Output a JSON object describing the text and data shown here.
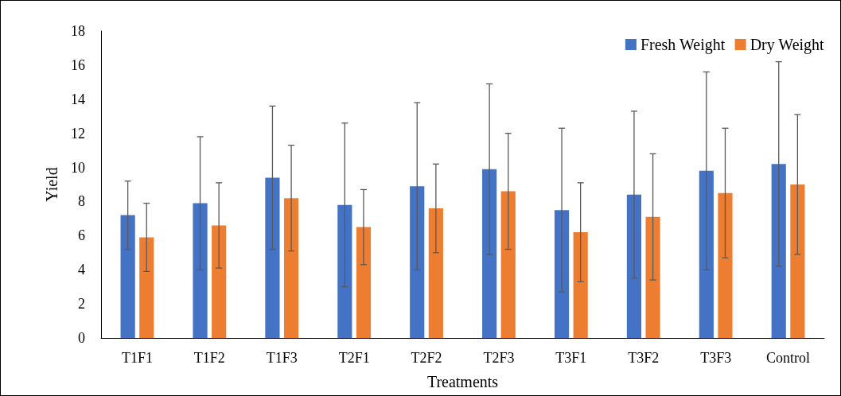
{
  "chart_data": {
    "type": "bar",
    "xlabel": "Treatments",
    "ylabel": "Yield",
    "categories": [
      "T1F1",
      "T1F2",
      "T1F3",
      "T2F1",
      "T2F2",
      "T2F3",
      "T3F1",
      "T3F2",
      "T3F3",
      "Control"
    ],
    "series": [
      {
        "name": "Fresh Weight",
        "color": "#4472c4",
        "values": [
          7.2,
          7.9,
          9.4,
          7.8,
          8.9,
          9.9,
          7.5,
          8.4,
          9.8,
          10.2
        ],
        "errors": [
          2,
          3.9,
          4.2,
          4.8,
          4.9,
          5,
          4.8,
          4.9,
          5.8,
          6
        ]
      },
      {
        "name": "Dry Weight",
        "color": "#ed7d31",
        "values": [
          5.9,
          6.6,
          8.2,
          6.5,
          7.6,
          8.6,
          6.2,
          7.1,
          8.5,
          9
        ],
        "errors": [
          2,
          2.5,
          3.1,
          2.2,
          2.6,
          3.4,
          2.9,
          3.7,
          3.8,
          4.1
        ]
      }
    ],
    "ylim": [
      0,
      18
    ],
    "yticks": [
      0,
      2,
      4,
      6,
      8,
      10,
      12,
      14,
      16,
      18
    ],
    "grid": false,
    "legend": "top right"
  }
}
